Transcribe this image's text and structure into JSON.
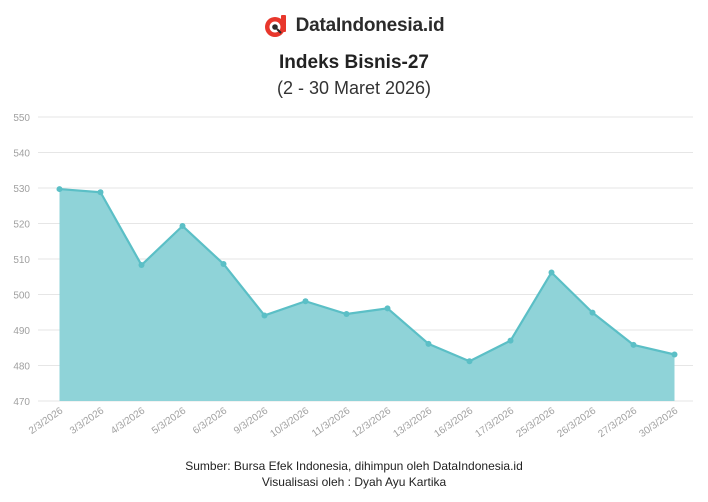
{
  "brand": {
    "name": "DataIndonesia.id"
  },
  "colors": {
    "fill": "#8fd3d8",
    "line": "#5bbfc6",
    "point": "#5bbfc6",
    "grid": "#e6e6e6",
    "tick": "#a0a0a0",
    "logo_red": "#e8372c"
  },
  "chart_data": {
    "type": "area",
    "title": "Indeks Bisnis-27",
    "subtitle": "(2 - 30 Maret 2026)",
    "categories": [
      "2/3/2026",
      "3/3/2026",
      "4/3/2026",
      "5/3/2026",
      "6/3/2026",
      "9/3/2026",
      "10/3/2026",
      "11/3/2026",
      "12/3/2026",
      "13/3/2026",
      "16/3/2026",
      "17/3/2026",
      "25/3/2026",
      "26/3/2026",
      "27/3/2026",
      "30/3/2026"
    ],
    "values": [
      529.7,
      528.8,
      508.3,
      519.3,
      508.6,
      494.1,
      498.1,
      494.5,
      496.1,
      486.1,
      481.2,
      487.0,
      506.2,
      494.9,
      485.8,
      483.1
    ],
    "ylim": [
      470,
      550
    ],
    "yticks": [
      470,
      480,
      490,
      500,
      510,
      520,
      530,
      540,
      550
    ],
    "grid": true,
    "legend": "none"
  },
  "footer": {
    "source": "Sumber: Bursa Efek Indonesia, dihimpun oleh DataIndonesia.id",
    "credit": "Visualisasi oleh : Dyah Ayu Kartika"
  }
}
